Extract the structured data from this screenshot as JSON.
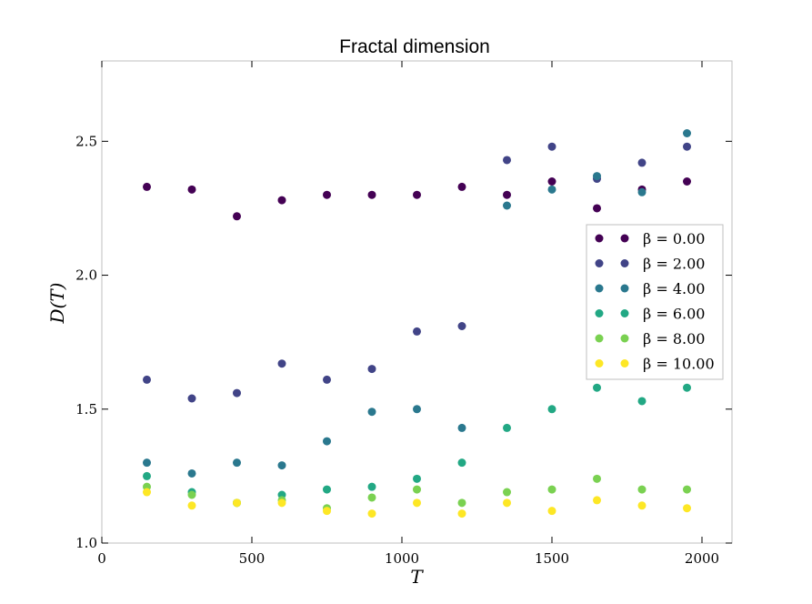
{
  "chart_data": {
    "type": "scatter",
    "title": "Fractal dimension",
    "xlabel": "T",
    "ylabel": "D(T)",
    "xlim": [
      0,
      2100
    ],
    "ylim": [
      1.0,
      2.8
    ],
    "xticks": [
      0,
      500,
      1000,
      1500,
      2000
    ],
    "yticks": [
      1.0,
      1.5,
      2.0,
      2.5
    ],
    "ytick_labels": [
      "1.0",
      "1.5",
      "2.0",
      "2.5"
    ],
    "grid": false,
    "legend_position": "center-right",
    "x": [
      150,
      300,
      450,
      600,
      750,
      900,
      1050,
      1200,
      1350,
      1500,
      1650,
      1800,
      1950
    ],
    "series": [
      {
        "name": "β = 0.00",
        "color": "#440154",
        "values": [
          2.33,
          2.32,
          2.22,
          2.28,
          2.3,
          2.3,
          2.3,
          2.33,
          2.3,
          2.35,
          2.25,
          2.32,
          2.35
        ]
      },
      {
        "name": "β = 2.00",
        "color": "#414487",
        "values": [
          1.61,
          1.54,
          1.56,
          1.67,
          1.61,
          1.65,
          1.79,
          1.81,
          2.43,
          2.48,
          2.36,
          2.42,
          2.48
        ]
      },
      {
        "name": "β = 4.00",
        "color": "#2a788e",
        "values": [
          1.3,
          1.26,
          1.3,
          1.29,
          1.38,
          1.49,
          1.5,
          1.43,
          2.26,
          2.32,
          2.37,
          2.31,
          2.53
        ]
      },
      {
        "name": "β = 6.00",
        "color": "#22a884",
        "values": [
          1.25,
          1.19,
          1.15,
          1.18,
          1.2,
          1.21,
          1.24,
          1.3,
          1.43,
          1.5,
          1.58,
          1.53,
          1.58
        ]
      },
      {
        "name": "β = 8.00",
        "color": "#7ad151",
        "values": [
          1.21,
          1.18,
          1.15,
          1.16,
          1.13,
          1.17,
          1.2,
          1.15,
          1.19,
          1.2,
          1.24,
          1.2,
          1.2
        ]
      },
      {
        "name": "β = 10.00",
        "color": "#fde725",
        "values": [
          1.19,
          1.14,
          1.15,
          1.15,
          1.12,
          1.11,
          1.15,
          1.11,
          1.15,
          1.12,
          1.16,
          1.14,
          1.13
        ]
      }
    ]
  }
}
